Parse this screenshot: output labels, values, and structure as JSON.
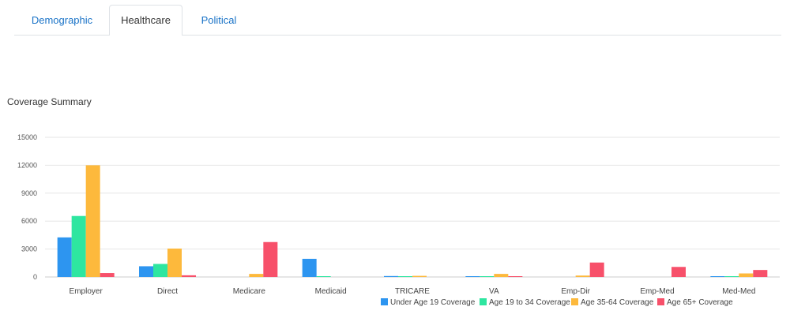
{
  "tabs": [
    {
      "label": "Demographic",
      "active": false
    },
    {
      "label": "Healthcare",
      "active": true
    },
    {
      "label": "Political",
      "active": false
    }
  ],
  "colors": {
    "tab_link": "#1a73c7",
    "grid": "#e6e6e6"
  },
  "chart_data": {
    "type": "bar",
    "title": "Coverage Summary",
    "xlabel": "",
    "ylabel": "",
    "ylim": [
      0,
      15000
    ],
    "yticks": [
      0,
      3000,
      6000,
      9000,
      12000,
      15000
    ],
    "grid": true,
    "legend_position": "bottom-right",
    "categories": [
      "Employer",
      "Direct",
      "Medicare",
      "Medicaid",
      "TRICARE",
      "VA",
      "Emp-Dir",
      "Emp-Med",
      "Med-Med"
    ],
    "series": [
      {
        "name": "Under Age 19 Coverage",
        "color": "#2d95f0",
        "values": [
          4250,
          1150,
          0,
          1950,
          100,
          20,
          0,
          0,
          80
        ]
      },
      {
        "name": "Age 19 to 34 Coverage",
        "color": "#2ee6a0",
        "values": [
          6550,
          1400,
          0,
          60,
          20,
          40,
          0,
          0,
          60
        ]
      },
      {
        "name": "Age 35-64 Coverage",
        "color": "#fdb93c",
        "values": [
          12000,
          3050,
          330,
          0,
          120,
          330,
          150,
          0,
          380
        ]
      },
      {
        "name": "Age 65+ Coverage",
        "color": "#f7506a",
        "values": [
          420,
          180,
          3750,
          0,
          0,
          40,
          1550,
          1080,
          750
        ]
      }
    ]
  }
}
